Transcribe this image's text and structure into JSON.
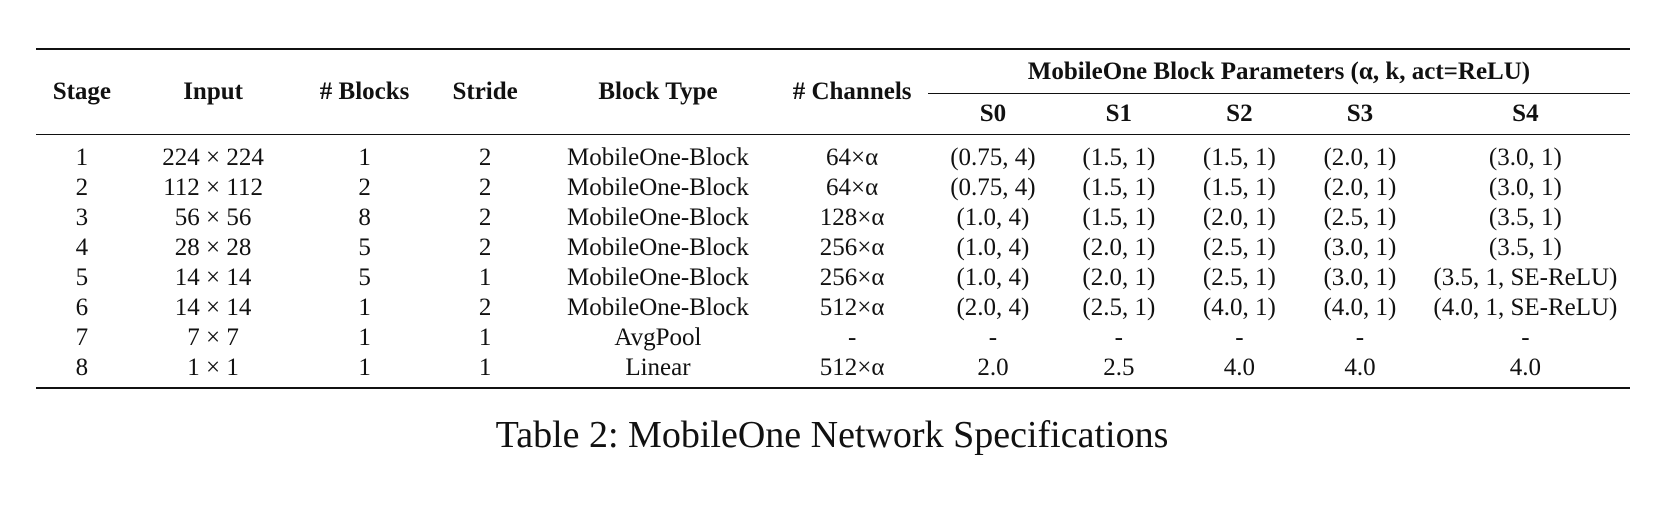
{
  "table": {
    "headers": {
      "stage": "Stage",
      "input": "Input",
      "blocks": "# Blocks",
      "stride": "Stride",
      "block_type": "Block Type",
      "channels": "# Channels",
      "group_title": "MobileOne Block Parameters (α, k, act=ReLU)",
      "variants": [
        "S0",
        "S1",
        "S2",
        "S3",
        "S4"
      ]
    },
    "rows": [
      {
        "stage": "1",
        "input": "224 × 224",
        "blocks": "1",
        "stride": "2",
        "block_type": "MobileOne-Block",
        "channels": "64×α",
        "s0": "(0.75, 4)",
        "s1": "(1.5, 1)",
        "s2": "(1.5, 1)",
        "s3": "(2.0, 1)",
        "s4": "(3.0, 1)"
      },
      {
        "stage": "2",
        "input": "112 × 112",
        "blocks": "2",
        "stride": "2",
        "block_type": "MobileOne-Block",
        "channels": "64×α",
        "s0": "(0.75, 4)",
        "s1": "(1.5, 1)",
        "s2": "(1.5, 1)",
        "s3": "(2.0, 1)",
        "s4": "(3.0, 1)"
      },
      {
        "stage": "3",
        "input": "56 × 56",
        "blocks": "8",
        "stride": "2",
        "block_type": "MobileOne-Block",
        "channels": "128×α",
        "s0": "(1.0, 4)",
        "s1": "(1.5, 1)",
        "s2": "(2.0, 1)",
        "s3": "(2.5, 1)",
        "s4": "(3.5, 1)"
      },
      {
        "stage": "4",
        "input": "28 × 28",
        "blocks": "5",
        "stride": "2",
        "block_type": "MobileOne-Block",
        "channels": "256×α",
        "s0": "(1.0, 4)",
        "s1": "(2.0, 1)",
        "s2": "(2.5, 1)",
        "s3": "(3.0, 1)",
        "s4": "(3.5, 1)"
      },
      {
        "stage": "5",
        "input": "14 × 14",
        "blocks": "5",
        "stride": "1",
        "block_type": "MobileOne-Block",
        "channels": "256×α",
        "s0": "(1.0, 4)",
        "s1": "(2.0, 1)",
        "s2": "(2.5, 1)",
        "s3": "(3.0, 1)",
        "s4": "(3.5, 1, SE-ReLU)"
      },
      {
        "stage": "6",
        "input": "14 × 14",
        "blocks": "1",
        "stride": "2",
        "block_type": "MobileOne-Block",
        "channels": "512×α",
        "s0": "(2.0, 4)",
        "s1": "(2.5, 1)",
        "s2": "(4.0, 1)",
        "s3": "(4.0, 1)",
        "s4": "(4.0, 1, SE-ReLU)"
      },
      {
        "stage": "7",
        "input": "7 × 7",
        "blocks": "1",
        "stride": "1",
        "block_type": "AvgPool",
        "channels": "-",
        "s0": "-",
        "s1": "-",
        "s2": "-",
        "s3": "-",
        "s4": "-"
      },
      {
        "stage": "8",
        "input": "1 × 1",
        "blocks": "1",
        "stride": "1",
        "block_type": "Linear",
        "channels": "512×α",
        "s0": "2.0",
        "s1": "2.5",
        "s2": "4.0",
        "s3": "4.0",
        "s4": "4.0"
      }
    ]
  },
  "caption": "Table 2: MobileOne Network Specifications"
}
